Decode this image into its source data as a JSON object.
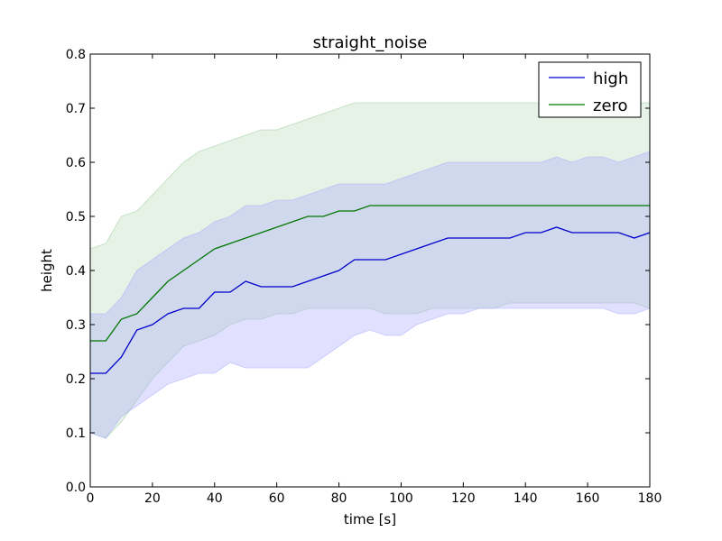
{
  "chart_data": {
    "type": "line",
    "title": "straight_noise",
    "xlabel": "time [s]",
    "ylabel": "height",
    "xlim": [
      0,
      180
    ],
    "ylim": [
      0.0,
      0.8
    ],
    "xticks": [
      0,
      20,
      40,
      60,
      80,
      100,
      120,
      140,
      160,
      180
    ],
    "yticks": [
      0.0,
      0.1,
      0.2,
      0.3,
      0.4,
      0.5,
      0.6,
      0.7,
      0.8
    ],
    "ytick_labels": [
      "0.0",
      "0.1",
      "0.2",
      "0.3",
      "0.4",
      "0.5",
      "0.6",
      "0.7",
      "0.8"
    ],
    "grid": false,
    "legend": {
      "position": "top-right",
      "entries": [
        "high",
        "zero"
      ]
    },
    "x": [
      0,
      5,
      10,
      15,
      20,
      25,
      30,
      35,
      40,
      45,
      50,
      55,
      60,
      65,
      70,
      75,
      80,
      85,
      90,
      95,
      100,
      105,
      110,
      115,
      120,
      125,
      130,
      135,
      140,
      145,
      150,
      155,
      160,
      165,
      170,
      175,
      180
    ],
    "series": [
      {
        "name": "high",
        "color": "#0000cc",
        "values": [
          0.21,
          0.21,
          0.24,
          0.29,
          0.3,
          0.32,
          0.33,
          0.33,
          0.36,
          0.36,
          0.38,
          0.37,
          0.37,
          0.37,
          0.38,
          0.39,
          0.4,
          0.42,
          0.42,
          0.42,
          0.43,
          0.44,
          0.45,
          0.46,
          0.46,
          0.46,
          0.46,
          0.46,
          0.47,
          0.47,
          0.48,
          0.47,
          0.47,
          0.47,
          0.47,
          0.46,
          0.47
        ],
        "lower": [
          0.1,
          0.09,
          0.13,
          0.15,
          0.17,
          0.19,
          0.2,
          0.21,
          0.21,
          0.23,
          0.22,
          0.22,
          0.22,
          0.22,
          0.22,
          0.24,
          0.26,
          0.28,
          0.29,
          0.28,
          0.28,
          0.3,
          0.31,
          0.32,
          0.32,
          0.33,
          0.33,
          0.33,
          0.33,
          0.33,
          0.33,
          0.33,
          0.33,
          0.33,
          0.32,
          0.32,
          0.33
        ],
        "upper": [
          0.32,
          0.32,
          0.35,
          0.4,
          0.42,
          0.44,
          0.46,
          0.47,
          0.49,
          0.5,
          0.52,
          0.52,
          0.53,
          0.53,
          0.54,
          0.55,
          0.56,
          0.56,
          0.56,
          0.56,
          0.57,
          0.58,
          0.59,
          0.6,
          0.6,
          0.6,
          0.6,
          0.6,
          0.6,
          0.6,
          0.61,
          0.6,
          0.61,
          0.61,
          0.6,
          0.61,
          0.62
        ],
        "fill": "#aaaaff"
      },
      {
        "name": "zero",
        "color": "#007700",
        "values": [
          0.27,
          0.27,
          0.31,
          0.32,
          0.35,
          0.38,
          0.4,
          0.42,
          0.44,
          0.45,
          0.46,
          0.47,
          0.48,
          0.49,
          0.5,
          0.5,
          0.51,
          0.51,
          0.52,
          0.52,
          0.52,
          0.52,
          0.52,
          0.52,
          0.52,
          0.52,
          0.52,
          0.52,
          0.52,
          0.52,
          0.52,
          0.52,
          0.52,
          0.52,
          0.52,
          0.52,
          0.52
        ],
        "lower": [
          0.1,
          0.09,
          0.12,
          0.16,
          0.2,
          0.23,
          0.26,
          0.27,
          0.28,
          0.3,
          0.31,
          0.31,
          0.32,
          0.32,
          0.33,
          0.33,
          0.33,
          0.33,
          0.33,
          0.32,
          0.32,
          0.32,
          0.33,
          0.33,
          0.33,
          0.33,
          0.33,
          0.34,
          0.34,
          0.34,
          0.34,
          0.34,
          0.34,
          0.34,
          0.34,
          0.34,
          0.33
        ],
        "upper": [
          0.44,
          0.45,
          0.5,
          0.51,
          0.54,
          0.57,
          0.6,
          0.62,
          0.63,
          0.64,
          0.65,
          0.66,
          0.66,
          0.67,
          0.68,
          0.69,
          0.7,
          0.71,
          0.71,
          0.71,
          0.71,
          0.71,
          0.71,
          0.71,
          0.71,
          0.71,
          0.71,
          0.71,
          0.71,
          0.71,
          0.72,
          0.71,
          0.71,
          0.71,
          0.71,
          0.71,
          0.71
        ],
        "fill": "#99cc99"
      }
    ]
  }
}
